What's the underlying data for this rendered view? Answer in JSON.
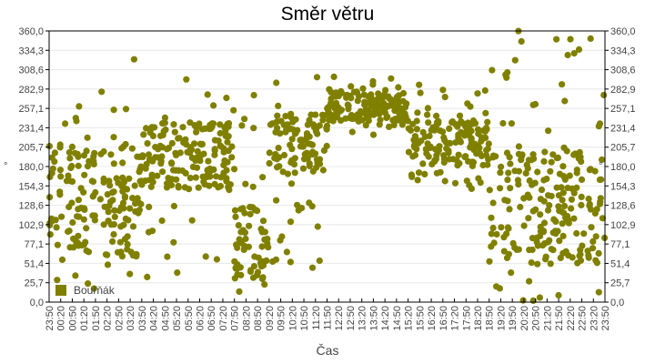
{
  "title": "Směr větru",
  "chart_data": {
    "type": "scatter",
    "title": "Směr větru",
    "xlabel": "Čas",
    "ylabel": "°",
    "ylabel_right": "°",
    "ylim": [
      0,
      360
    ],
    "yticks": [
      "0,0",
      "25,7",
      "51,4",
      "77,1",
      "102,9",
      "128,6",
      "154,3",
      "180,0",
      "205,7",
      "231,4",
      "257,1",
      "282,9",
      "308,6",
      "334,3",
      "360,0"
    ],
    "xticks": [
      "23:50",
      "00:20",
      "00:50",
      "01:20",
      "01:50",
      "02:20",
      "02:50",
      "03:20",
      "03:50",
      "04:20",
      "04:50",
      "05:20",
      "05:50",
      "06:20",
      "06:50",
      "07:20",
      "07:50",
      "08:20",
      "08:50",
      "09:20",
      "09:50",
      "10:20",
      "10:50",
      "11:20",
      "11:50",
      "12:20",
      "12:50",
      "13:20",
      "13:50",
      "14:20",
      "14:50",
      "15:20",
      "15:50",
      "16:20",
      "16:50",
      "17:20",
      "17:50",
      "18:20",
      "18:50",
      "19:20",
      "19:50",
      "20:20",
      "20:50",
      "21:20",
      "21:50",
      "22:20",
      "22:50",
      "23:20",
      "23:50"
    ],
    "grid": true,
    "legend_position": "bottom-left-inside",
    "series": [
      {
        "name": "Bouřňák",
        "color": "#808000",
        "description": "Wind direction in degrees sampled through the day; x in hours since 23:50 (0-24)",
        "points_summary": [
          {
            "window": "23:50-03:50",
            "range_deg": [
              0,
              335
            ],
            "typical_deg": [
              60,
              210
            ]
          },
          {
            "window": "03:50-07:50",
            "range_deg": [
              30,
              305
            ],
            "typical_deg": [
              150,
              240
            ]
          },
          {
            "window": "07:50-09:20",
            "range_deg": [
              0,
              300
            ],
            "typical_deg": [
              30,
              130
            ]
          },
          {
            "window": "09:20-11:50",
            "range_deg": [
              35,
              300
            ],
            "typical_deg": [
              170,
              250
            ]
          },
          {
            "window": "11:50-15:20",
            "range_deg": [
              220,
              300
            ],
            "typical_deg": [
              240,
              280
            ]
          },
          {
            "window": "15:20-18:50",
            "range_deg": [
              150,
              290
            ],
            "typical_deg": [
              180,
              240
            ]
          },
          {
            "window": "18:50-23:50",
            "range_deg": [
              0,
              360
            ],
            "typical_deg": [
              50,
              200
            ]
          }
        ]
      }
    ]
  },
  "legend": {
    "label": "Bouřňák",
    "color": "#808000"
  },
  "colors": {
    "series": "#808000",
    "grid": "#e8e8e8",
    "axis": "#000000",
    "text": "#444444"
  }
}
